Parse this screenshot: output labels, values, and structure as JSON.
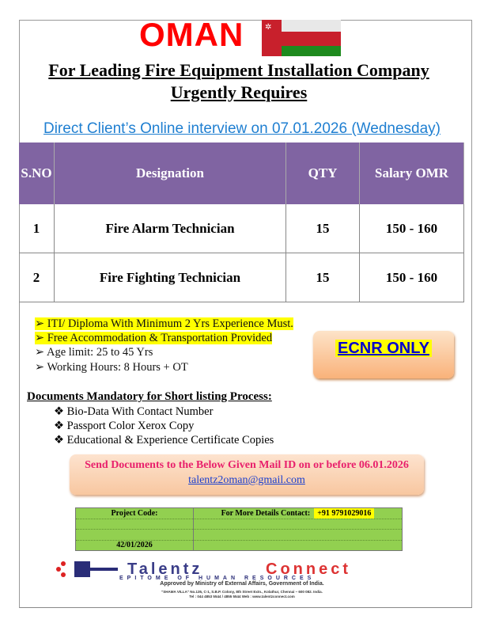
{
  "header": {
    "country": "OMAN",
    "headline_1": "For Leading Fire Equipment Installation Company ",
    "headline_2": "Urgently Requires",
    "interview": "Direct Client’s Online interview on 07.01.2026 (Wednesday)"
  },
  "colors": {
    "title_red": "#ff0000",
    "table_header": "#8064a2",
    "link_blue": "#1f7fd1",
    "highlight": "#ffff00",
    "green_table": "#92d050"
  },
  "jobs": {
    "columns": [
      "S.NO",
      "Designation",
      "QTY",
      "Salary OMR"
    ],
    "rows": [
      [
        "1",
        "Fire Alarm Technician",
        "15",
        "150 - 160"
      ],
      [
        "2",
        "Fire Fighting Technician",
        "15",
        "150 - 160"
      ]
    ]
  },
  "requirements": [
    "ITI/ Diploma With Minimum 2 Yrs Experience Must.",
    "Free Accommodation & Transportation Provided",
    "Age limit: 25 to 45 Yrs",
    "Working Hours: 8 Hours + OT"
  ],
  "ecnr": "ECNR ONLY",
  "documents": {
    "heading": "Documents Mandatory for Short listing Process:",
    "items": [
      "Bio-Data With Contact Number",
      "Passport Color Xerox Copy",
      "Educational & Experience Certificate Copies"
    ]
  },
  "send": {
    "text": "Send Documents to the Below Given Mail ID on or before 06.01.2026",
    "email": "talentz2oman@gmail.com"
  },
  "contact": {
    "project_code_label": "Project Code:",
    "project_code": "42/01/2026",
    "details_label": "For More Details Contact:",
    "phone": "+91 9791029016"
  },
  "footer": {
    "logo_text": "Talentz Connect",
    "tagline": "EPITOME OF HUMAN RESOURCES",
    "approved": "Approved by Ministry of External Affairs, Government of India.",
    "address": "\"SHAMA VILLA\" No.135, C-1, S.B.P. Colony, 8th Street Extn., Kolathur, Chennai – 600 082. India.",
    "tel": "Tel : 044 4853 5544 / 4855 5544 Web : www.talentzconnect.com"
  }
}
